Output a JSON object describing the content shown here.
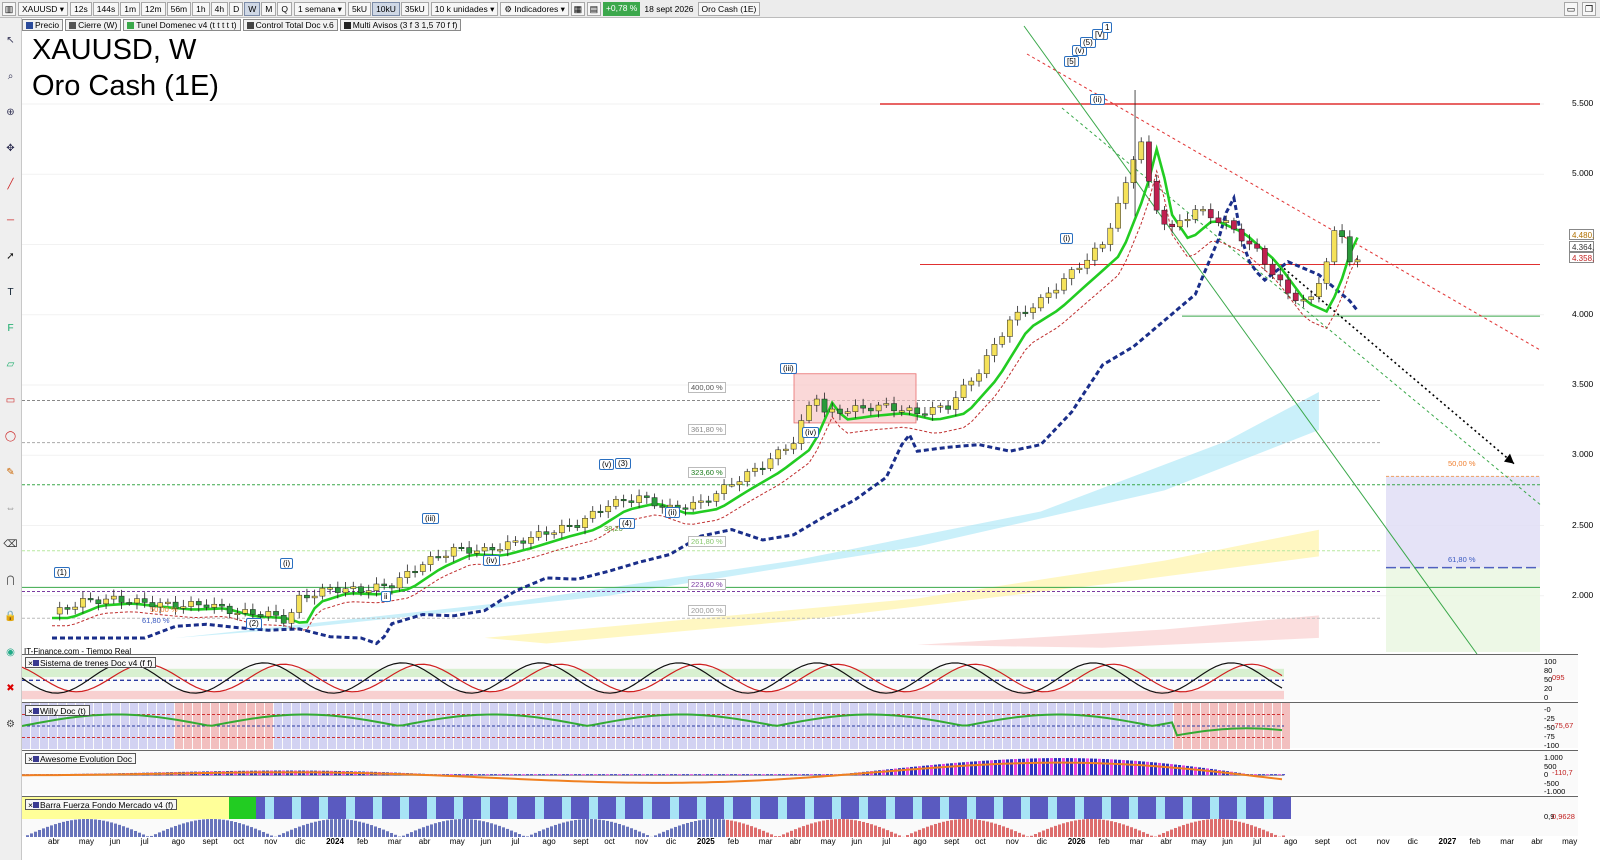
{
  "toolbar": {
    "symbol": "XAUUSD",
    "timeframes": [
      "12s",
      "144s",
      "1m",
      "12m",
      "56m",
      "1h",
      "4h",
      "D",
      "W",
      "M",
      "Q"
    ],
    "active_timeframe": "W",
    "range": "1 semana",
    "units": [
      "5kU",
      "10kU",
      "35kU"
    ],
    "active_unit": "10kU",
    "unit_select": "10 k unidades",
    "indicators_label": "Indicadores",
    "change": "+0,78 %",
    "date": "18 sept 2026",
    "instrument": "Oro Cash (1E)"
  },
  "indicator_chips": [
    "Precio",
    "Cierre (W)",
    "Tunel Domenec v4 (t t t t t)",
    "Control Total Doc v.6",
    "Multi Avisos (3 f 3 1,5 70 f f)"
  ],
  "chart": {
    "title_line1": "XAUUSD, W",
    "title_line2": "Oro Cash (1E)",
    "source": "IT-Finance.com - Tiempo Real",
    "price_boxes": [
      "4.480,",
      "4.364,",
      "4.358,"
    ],
    "y_labels": [
      "5.500",
      "5.000",
      "4.500",
      "4.000",
      "3.500",
      "3.000",
      "2.500",
      "2.000"
    ],
    "fib_labels": [
      "400,00 %",
      "361,80 %",
      "323,60 %",
      "261,80 %",
      "223,60 %",
      "200,00 %",
      "61,80 %",
      "38,20",
      "50,00 %",
      "61,80 %",
      "50,00 %"
    ],
    "wave_labels": [
      "(1)",
      "(2)",
      "(i)",
      "ii",
      "(iii)",
      "(iv)",
      "(v)",
      "(3)",
      "(4)",
      "(ii)",
      "(iii)",
      "(iv)",
      "(i)",
      "[5]",
      "(v)",
      "(5)",
      "[V]",
      "1",
      "(ii)"
    ]
  },
  "panes": [
    {
      "label": "Sistema de trenes Doc v4 (f f)",
      "y_labels": [
        "100",
        "80",
        "50",
        "20",
        "0"
      ],
      "value": "095"
    },
    {
      "label": "Willy Doc (t)",
      "y_labels": [
        "-0",
        "-25",
        "-50",
        "-75",
        "-100"
      ],
      "value": "-75,67"
    },
    {
      "label": "Awesome Evolution Doc",
      "y_labels": [
        "1.000",
        "500",
        "0",
        "-500",
        "-1.000"
      ],
      "value": "-110,7"
    },
    {
      "label": "Barra Fuerza Fondo Mercado v4 (f)",
      "y_labels": [
        "0,9"
      ],
      "value": "0,9628"
    }
  ],
  "x_axis": [
    "abr",
    "may",
    "jun",
    "jul",
    "ago",
    "sept",
    "oct",
    "nov",
    "dic",
    "2024",
    "feb",
    "mar",
    "abr",
    "may",
    "jun",
    "jul",
    "ago",
    "sept",
    "oct",
    "nov",
    "dic",
    "2025",
    "feb",
    "mar",
    "abr",
    "may",
    "jun",
    "jul",
    "ago",
    "sept",
    "oct",
    "nov",
    "dic",
    "2026",
    "feb",
    "mar",
    "abr",
    "may",
    "jun",
    "jul",
    "ago",
    "sept",
    "oct",
    "nov",
    "dic",
    "2027",
    "feb",
    "mar",
    "abr",
    "may"
  ],
  "colors": {
    "accent": "#3ca84c",
    "resistance": "#e03030",
    "ema_fast": "#22cc22",
    "ema_slow": "#1a2e8a",
    "cloud": "#9fe3f5"
  }
}
